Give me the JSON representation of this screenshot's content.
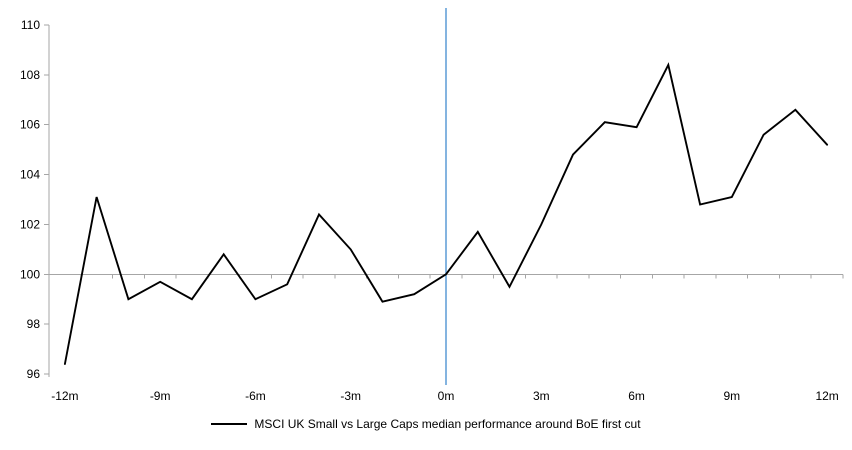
{
  "chart_data": {
    "type": "line",
    "title": "",
    "x_axis_unit": "months relative to first cut",
    "x": [
      -12,
      -11,
      -10,
      -9,
      -8,
      -7,
      -6,
      -5,
      -4,
      -3,
      -2,
      -1,
      0,
      1,
      2,
      3,
      4,
      5,
      6,
      7,
      8,
      9,
      10,
      11,
      12
    ],
    "series": [
      {
        "name": "MSCI UK Small vs Large Caps median performance around BoE first cut",
        "color": "#000000",
        "values": [
          96.4,
          103.1,
          99.0,
          99.7,
          99.0,
          100.8,
          99.0,
          99.6,
          102.4,
          101.0,
          98.9,
          99.2,
          100.0,
          101.7,
          99.5,
          102.0,
          104.8,
          106.1,
          105.9,
          108.4,
          102.8,
          103.1,
          105.6,
          106.6,
          105.2
        ]
      }
    ],
    "x_tick_labels": [
      {
        "label": "-12m",
        "x": -12
      },
      {
        "label": "-9m",
        "x": -9
      },
      {
        "label": "-6m",
        "x": -6
      },
      {
        "label": "-3m",
        "x": -3
      },
      {
        "label": "0m",
        "x": 0
      },
      {
        "label": "3m",
        "x": 3
      },
      {
        "label": "6m",
        "x": 6
      },
      {
        "label": "9m",
        "x": 9
      },
      {
        "label": "12m",
        "x": 12
      }
    ],
    "y_ticks": [
      96,
      98,
      100,
      102,
      104,
      106,
      108,
      110
    ],
    "ylim": [
      96,
      110
    ],
    "baseline_value": 100,
    "event_line": {
      "x": 0,
      "color": "#5B9BD5"
    },
    "axis_color": "#A6A6A6",
    "text_color": "#000000",
    "grid": "off",
    "legend_position": "bottom-center"
  }
}
